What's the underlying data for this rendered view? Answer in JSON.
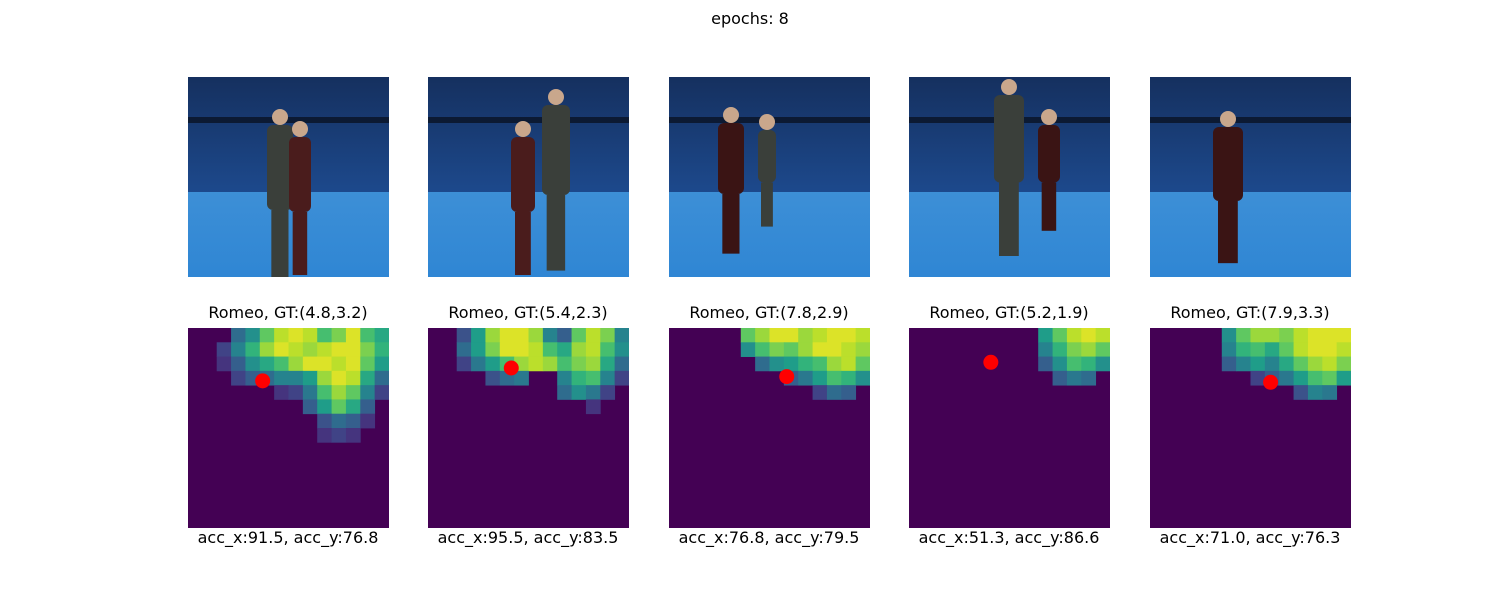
{
  "figure": {
    "title": "epochs: 8"
  },
  "colors": {
    "photo_wall": "#1d4a8e",
    "photo_floor": "#2f86d4",
    "heat_low": "#440154",
    "marker": "#ff0000"
  },
  "chart_data": [
    {
      "type": "heatmap",
      "title": "Romeo, GT:(4.8,3.2)",
      "xlabel": "acc_x:91.5, acc_y:76.8",
      "grid": [
        14,
        14
      ],
      "marker": [
        5.2,
        3.7
      ],
      "cells": [
        [
          3,
          0,
          0.35
        ],
        [
          4,
          0,
          0.5
        ],
        [
          5,
          0,
          0.75
        ],
        [
          6,
          0,
          0.9
        ],
        [
          7,
          0,
          0.95
        ],
        [
          8,
          0,
          0.9
        ],
        [
          9,
          0,
          0.7
        ],
        [
          10,
          0,
          0.8
        ],
        [
          11,
          0,
          0.95
        ],
        [
          12,
          0,
          0.7
        ],
        [
          13,
          0,
          0.6
        ],
        [
          2,
          1,
          0.2
        ],
        [
          3,
          1,
          0.45
        ],
        [
          4,
          1,
          0.65
        ],
        [
          5,
          1,
          0.85
        ],
        [
          6,
          1,
          0.95
        ],
        [
          7,
          1,
          0.9
        ],
        [
          8,
          1,
          0.85
        ],
        [
          9,
          1,
          0.9
        ],
        [
          10,
          1,
          0.95
        ],
        [
          11,
          1,
          0.95
        ],
        [
          12,
          1,
          0.8
        ],
        [
          13,
          1,
          0.65
        ],
        [
          2,
          2,
          0.15
        ],
        [
          3,
          2,
          0.3
        ],
        [
          4,
          2,
          0.5
        ],
        [
          5,
          2,
          0.6
        ],
        [
          6,
          2,
          0.7
        ],
        [
          7,
          2,
          0.85
        ],
        [
          8,
          2,
          0.95
        ],
        [
          9,
          2,
          0.95
        ],
        [
          10,
          2,
          0.9
        ],
        [
          11,
          2,
          0.95
        ],
        [
          12,
          2,
          0.75
        ],
        [
          13,
          2,
          0.55
        ],
        [
          3,
          3,
          0.2
        ],
        [
          4,
          3,
          0.3
        ],
        [
          5,
          3,
          0.35
        ],
        [
          6,
          3,
          0.45
        ],
        [
          7,
          3,
          0.45
        ],
        [
          8,
          3,
          0.55
        ],
        [
          9,
          3,
          0.85
        ],
        [
          10,
          3,
          0.95
        ],
        [
          11,
          3,
          0.9
        ],
        [
          12,
          3,
          0.6
        ],
        [
          13,
          3,
          0.35
        ],
        [
          6,
          4,
          0.15
        ],
        [
          7,
          4,
          0.2
        ],
        [
          8,
          4,
          0.4
        ],
        [
          9,
          4,
          0.7
        ],
        [
          10,
          4,
          0.85
        ],
        [
          11,
          4,
          0.75
        ],
        [
          12,
          4,
          0.45
        ],
        [
          13,
          4,
          0.2
        ],
        [
          8,
          5,
          0.3
        ],
        [
          9,
          5,
          0.55
        ],
        [
          10,
          5,
          0.75
        ],
        [
          11,
          5,
          0.6
        ],
        [
          12,
          5,
          0.3
        ],
        [
          9,
          6,
          0.25
        ],
        [
          10,
          6,
          0.35
        ],
        [
          11,
          6,
          0.3
        ],
        [
          12,
          6,
          0.15
        ],
        [
          9,
          7,
          0.15
        ],
        [
          10,
          7,
          0.2
        ],
        [
          11,
          7,
          0.15
        ]
      ]
    },
    {
      "type": "heatmap",
      "title": "Romeo, GT:(5.4,2.3)",
      "xlabel": "acc_x:95.5, acc_y:83.5",
      "grid": [
        14,
        14
      ],
      "marker": [
        5.8,
        2.8
      ],
      "cells": [
        [
          2,
          0,
          0.25
        ],
        [
          3,
          0,
          0.55
        ],
        [
          4,
          0,
          0.85
        ],
        [
          5,
          0,
          0.95
        ],
        [
          6,
          0,
          0.95
        ],
        [
          7,
          0,
          0.85
        ],
        [
          8,
          0,
          0.45
        ],
        [
          9,
          0,
          0.3
        ],
        [
          10,
          0,
          0.75
        ],
        [
          11,
          0,
          0.9
        ],
        [
          12,
          0,
          0.8
        ],
        [
          13,
          0,
          0.45
        ],
        [
          2,
          1,
          0.35
        ],
        [
          3,
          1,
          0.55
        ],
        [
          4,
          1,
          0.8
        ],
        [
          5,
          1,
          0.95
        ],
        [
          6,
          1,
          0.95
        ],
        [
          7,
          1,
          0.9
        ],
        [
          8,
          1,
          0.7
        ],
        [
          9,
          1,
          0.6
        ],
        [
          10,
          1,
          0.85
        ],
        [
          11,
          1,
          0.9
        ],
        [
          12,
          1,
          0.7
        ],
        [
          13,
          1,
          0.5
        ],
        [
          2,
          2,
          0.2
        ],
        [
          3,
          2,
          0.4
        ],
        [
          4,
          2,
          0.55
        ],
        [
          5,
          2,
          0.7
        ],
        [
          6,
          2,
          0.85
        ],
        [
          7,
          2,
          0.9
        ],
        [
          8,
          2,
          0.85
        ],
        [
          9,
          2,
          0.7
        ],
        [
          10,
          2,
          0.8
        ],
        [
          11,
          2,
          0.85
        ],
        [
          12,
          2,
          0.6
        ],
        [
          13,
          2,
          0.35
        ],
        [
          4,
          3,
          0.25
        ],
        [
          5,
          3,
          0.35
        ],
        [
          6,
          3,
          0.4
        ],
        [
          9,
          3,
          0.45
        ],
        [
          10,
          3,
          0.65
        ],
        [
          11,
          3,
          0.7
        ],
        [
          12,
          3,
          0.45
        ],
        [
          13,
          3,
          0.2
        ],
        [
          9,
          4,
          0.35
        ],
        [
          10,
          4,
          0.5
        ],
        [
          11,
          4,
          0.4
        ],
        [
          12,
          4,
          0.2
        ],
        [
          11,
          5,
          0.15
        ]
      ]
    },
    {
      "type": "heatmap",
      "title": "Romeo, GT:(7.8,2.9)",
      "xlabel": "acc_x:76.8, acc_y:79.5",
      "grid": [
        14,
        14
      ],
      "marker": [
        8.2,
        3.4
      ],
      "cells": [
        [
          5,
          0,
          0.75
        ],
        [
          6,
          0,
          0.85
        ],
        [
          7,
          0,
          0.95
        ],
        [
          8,
          0,
          0.95
        ],
        [
          9,
          0,
          0.85
        ],
        [
          10,
          0,
          0.9
        ],
        [
          11,
          0,
          0.95
        ],
        [
          12,
          0,
          0.95
        ],
        [
          13,
          0,
          0.9
        ],
        [
          5,
          1,
          0.5
        ],
        [
          6,
          1,
          0.7
        ],
        [
          7,
          1,
          0.8
        ],
        [
          8,
          1,
          0.75
        ],
        [
          9,
          1,
          0.85
        ],
        [
          10,
          1,
          0.95
        ],
        [
          11,
          1,
          0.95
        ],
        [
          12,
          1,
          0.9
        ],
        [
          13,
          1,
          0.85
        ],
        [
          6,
          2,
          0.35
        ],
        [
          7,
          2,
          0.5
        ],
        [
          8,
          2,
          0.55
        ],
        [
          9,
          2,
          0.65
        ],
        [
          10,
          2,
          0.7
        ],
        [
          11,
          2,
          0.85
        ],
        [
          12,
          2,
          0.9
        ],
        [
          13,
          2,
          0.75
        ],
        [
          8,
          3,
          0.3
        ],
        [
          9,
          3,
          0.4
        ],
        [
          10,
          3,
          0.55
        ],
        [
          11,
          3,
          0.7
        ],
        [
          12,
          3,
          0.65
        ],
        [
          13,
          3,
          0.5
        ],
        [
          10,
          4,
          0.2
        ],
        [
          11,
          4,
          0.35
        ],
        [
          12,
          4,
          0.3
        ]
      ]
    },
    {
      "type": "heatmap",
      "title": "Romeo, GT:(5.2,1.9)",
      "xlabel": "acc_x:51.3, acc_y:86.6",
      "grid": [
        14,
        14
      ],
      "marker": [
        5.7,
        2.4
      ],
      "cells": [
        [
          9,
          0,
          0.55
        ],
        [
          10,
          0,
          0.75
        ],
        [
          11,
          0,
          0.9
        ],
        [
          12,
          0,
          0.95
        ],
        [
          13,
          0,
          0.9
        ],
        [
          9,
          1,
          0.45
        ],
        [
          10,
          1,
          0.65
        ],
        [
          11,
          1,
          0.8
        ],
        [
          12,
          1,
          0.85
        ],
        [
          13,
          1,
          0.75
        ],
        [
          9,
          2,
          0.3
        ],
        [
          10,
          2,
          0.5
        ],
        [
          11,
          2,
          0.7
        ],
        [
          12,
          2,
          0.65
        ],
        [
          13,
          2,
          0.5
        ],
        [
          10,
          3,
          0.3
        ],
        [
          11,
          3,
          0.4
        ],
        [
          12,
          3,
          0.35
        ]
      ]
    },
    {
      "type": "heatmap",
      "title": "Romeo, GT:(7.9,3.3)",
      "xlabel": "acc_x:71.0, acc_y:76.3",
      "grid": [
        14,
        14
      ],
      "marker": [
        8.4,
        3.8
      ],
      "cells": [
        [
          5,
          0,
          0.5
        ],
        [
          6,
          0,
          0.75
        ],
        [
          7,
          0,
          0.85
        ],
        [
          8,
          0,
          0.85
        ],
        [
          9,
          0,
          0.8
        ],
        [
          10,
          0,
          0.9
        ],
        [
          11,
          0,
          0.95
        ],
        [
          12,
          0,
          0.95
        ],
        [
          13,
          0,
          0.95
        ],
        [
          5,
          1,
          0.45
        ],
        [
          6,
          1,
          0.65
        ],
        [
          7,
          1,
          0.7
        ],
        [
          8,
          1,
          0.6
        ],
        [
          9,
          1,
          0.75
        ],
        [
          10,
          1,
          0.9
        ],
        [
          11,
          1,
          0.95
        ],
        [
          12,
          1,
          0.95
        ],
        [
          13,
          1,
          0.9
        ],
        [
          5,
          2,
          0.3
        ],
        [
          6,
          2,
          0.45
        ],
        [
          7,
          2,
          0.55
        ],
        [
          8,
          2,
          0.45
        ],
        [
          9,
          2,
          0.6
        ],
        [
          10,
          2,
          0.75
        ],
        [
          11,
          2,
          0.85
        ],
        [
          12,
          2,
          0.9
        ],
        [
          13,
          2,
          0.8
        ],
        [
          7,
          3,
          0.2
        ],
        [
          8,
          3,
          0.3
        ],
        [
          9,
          3,
          0.4
        ],
        [
          10,
          3,
          0.55
        ],
        [
          11,
          3,
          0.7
        ],
        [
          12,
          3,
          0.75
        ],
        [
          13,
          3,
          0.55
        ],
        [
          10,
          4,
          0.25
        ],
        [
          11,
          4,
          0.45
        ],
        [
          12,
          4,
          0.4
        ]
      ]
    }
  ]
}
